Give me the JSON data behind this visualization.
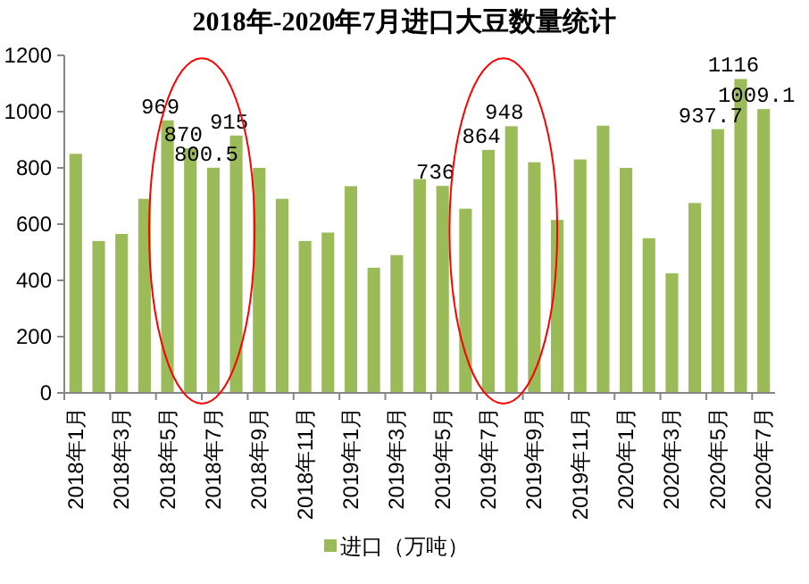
{
  "chart_data": {
    "type": "bar",
    "title": "2018年-2020年7月进口大豆数量统计",
    "categories": [
      "2018年1月",
      null,
      "2018年3月",
      null,
      "2018年5月",
      null,
      "2018年7月",
      null,
      "2018年9月",
      null,
      "2018年11月",
      null,
      "2019年1月",
      null,
      "2019年3月",
      null,
      "2019年5月",
      null,
      "2019年7月",
      null,
      "2019年9月",
      null,
      "2019年11月",
      null,
      "2020年1月",
      null,
      "2020年3月",
      null,
      "2020年5月",
      null,
      "2020年7月"
    ],
    "series": [
      {
        "name": "进口（万吨）",
        "color": "#9bbb59",
        "values": [
          850,
          540,
          565,
          690,
          969,
          870,
          800.5,
          915,
          800,
          690,
          540,
          570,
          735,
          445,
          490,
          760,
          736,
          655,
          864,
          948,
          820,
          615,
          830,
          950,
          800,
          550,
          425,
          675,
          937.7,
          1116,
          1009.1
        ],
        "value_labels": [
          null,
          null,
          null,
          null,
          "969",
          "870",
          "800.5",
          "915",
          null,
          null,
          null,
          null,
          null,
          null,
          null,
          null,
          "736",
          null,
          "864",
          "948",
          null,
          null,
          null,
          null,
          null,
          null,
          null,
          null,
          "937.7",
          "1116",
          "1009.1"
        ]
      }
    ],
    "ylim": [
      0,
      1200
    ],
    "yticks": [
      0,
      200,
      400,
      600,
      800,
      1000,
      1200
    ],
    "legend": "bottom",
    "grid": false
  }
}
